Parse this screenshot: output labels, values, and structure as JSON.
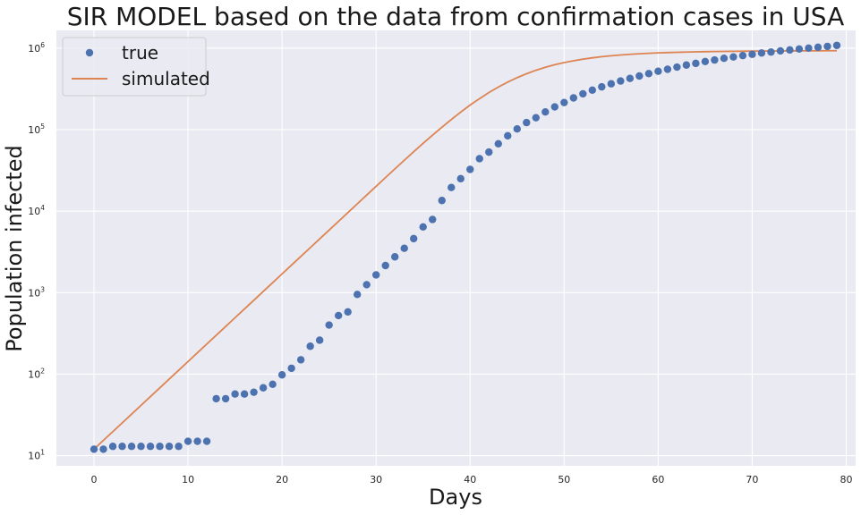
{
  "chart_data": {
    "type": "scatter",
    "title": "SIR MODEL based on the data from confirmation cases in USA",
    "xlabel": "Days",
    "ylabel": "Population infected",
    "xlim": [
      -4,
      81
    ],
    "ylim": [
      7.5,
      1650000
    ],
    "yscale": "log",
    "grid": true,
    "legend_position": "top-left",
    "x_ticks": [
      0,
      10,
      20,
      30,
      40,
      50,
      60,
      70,
      80
    ],
    "y_ticks": [
      {
        "value": 10,
        "base": "10",
        "exp": "1"
      },
      {
        "value": 100,
        "base": "10",
        "exp": "2"
      },
      {
        "value": 1000,
        "base": "10",
        "exp": "3"
      },
      {
        "value": 10000,
        "base": "10",
        "exp": "4"
      },
      {
        "value": 100000,
        "base": "10",
        "exp": "5"
      },
      {
        "value": 1000000,
        "base": "10",
        "exp": "6"
      }
    ],
    "colors": {
      "background": "#eaeaf2",
      "grid": "#ffffff",
      "true": "#4c72b0",
      "simulated": "#dd8452"
    },
    "series": [
      {
        "name": "true",
        "type": "scatter",
        "x": [
          0,
          1,
          2,
          3,
          4,
          5,
          6,
          7,
          8,
          9,
          10,
          11,
          12,
          13,
          14,
          15,
          16,
          17,
          18,
          19,
          20,
          21,
          22,
          23,
          24,
          25,
          26,
          27,
          28,
          29,
          30,
          31,
          32,
          33,
          34,
          35,
          36,
          37,
          38,
          39,
          40,
          41,
          42,
          43,
          44,
          45,
          46,
          47,
          48,
          49,
          50,
          51,
          52,
          53,
          54,
          55,
          56,
          57,
          58,
          59,
          60,
          61,
          62,
          63,
          64,
          65,
          66,
          67,
          68,
          69,
          70,
          71,
          72,
          73,
          74,
          75,
          76,
          77,
          78,
          79
        ],
        "y": [
          12,
          12,
          13,
          13,
          13,
          13,
          13,
          13,
          13,
          13,
          15,
          15,
          15,
          50,
          50,
          57,
          57,
          60,
          68,
          75,
          98,
          118,
          150,
          220,
          261,
          400,
          523,
          580,
          950,
          1250,
          1650,
          2150,
          2750,
          3500,
          4600,
          6400,
          7900,
          13500,
          19500,
          25000,
          32500,
          44000,
          53000,
          67000,
          84000,
          102000,
          122000,
          140000,
          165000,
          190000,
          215000,
          245000,
          275000,
          305000,
          335000,
          365000,
          395000,
          425000,
          455000,
          487000,
          520000,
          550000,
          585000,
          620000,
          650000,
          685000,
          715000,
          750000,
          780000,
          810000,
          840000,
          870000,
          895000,
          925000,
          950000,
          975000,
          1000000,
          1025000,
          1050000,
          1080000
        ]
      },
      {
        "name": "simulated",
        "type": "line",
        "x": [
          0,
          1,
          2,
          3,
          4,
          5,
          6,
          7,
          8,
          9,
          10,
          11,
          12,
          13,
          14,
          15,
          16,
          17,
          18,
          19,
          20,
          21,
          22,
          23,
          24,
          25,
          26,
          27,
          28,
          29,
          30,
          31,
          32,
          33,
          34,
          35,
          36,
          37,
          38,
          39,
          40,
          41,
          42,
          43,
          44,
          45,
          46,
          47,
          48,
          49,
          50,
          51,
          52,
          53,
          54,
          55,
          56,
          57,
          58,
          59,
          60,
          61,
          62,
          63,
          64,
          65,
          66,
          67,
          68,
          69,
          70,
          71,
          72,
          73,
          74,
          75,
          76,
          77,
          78,
          79
        ],
        "y": [
          12,
          15.4,
          19.7,
          25.2,
          32.3,
          41.4,
          53,
          67.9,
          87,
          111.4,
          142.7,
          182.8,
          234.2,
          300,
          384,
          492,
          630,
          807,
          1034,
          1324,
          1696,
          2172,
          2782,
          3563,
          4563,
          5844,
          7485,
          9586,
          12280,
          15730,
          20140,
          25800,
          33000,
          42100,
          53600,
          67900,
          85600,
          107000,
          133000,
          164000,
          200000,
          240000,
          285000,
          333000,
          383000,
          434000,
          485000,
          535000,
          582000,
          625000,
          665000,
          700000,
          732000,
          760000,
          785000,
          806000,
          824000,
          840000,
          853000,
          864000,
          874000,
          882000,
          889000,
          895000,
          900000,
          904000,
          908000,
          911000,
          914000,
          916000,
          918000,
          920000,
          922000,
          923000,
          924000,
          925000,
          926000,
          927000,
          928000,
          929000
        ]
      }
    ]
  }
}
